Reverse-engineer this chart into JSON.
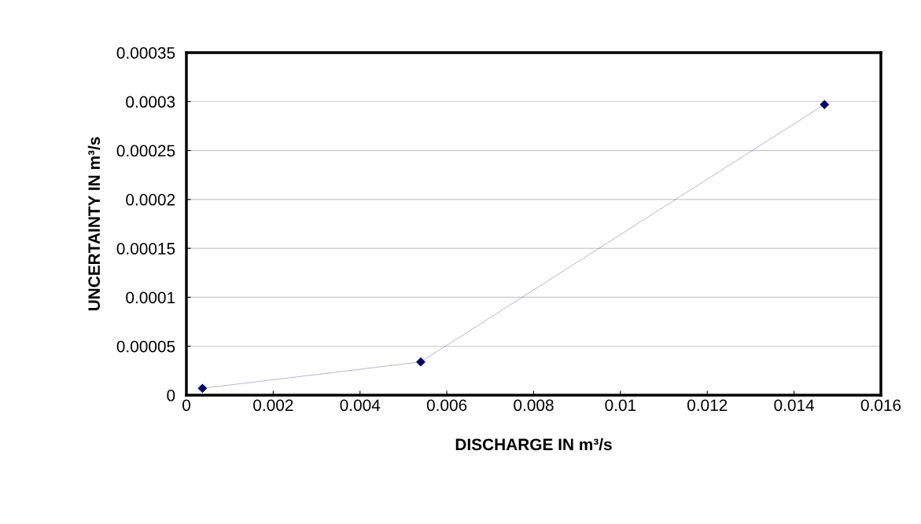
{
  "chart_data": {
    "type": "line",
    "xlabel": "DISCHARGE IN m³/s",
    "ylabel": "UNCERTAINTY IN m³/s",
    "x": [
      0.00037,
      0.0054,
      0.0147
    ],
    "series": [
      {
        "color": "#000066",
        "values": [
          7e-06,
          3.4e-05,
          0.000297
        ]
      }
    ],
    "xlim": [
      0,
      0.016
    ],
    "xticks": [
      0,
      0.002,
      0.004,
      0.006,
      0.008,
      0.01,
      0.012,
      0.014,
      0.016
    ],
    "ylim": [
      0,
      0.00035
    ],
    "yticks": [
      0,
      {
        "value": 5e-05,
        "label": "0.00005"
      },
      {
        "value": 0.0001,
        "label": "0.0001"
      },
      {
        "value": 0.00015,
        "label": "0.00015"
      },
      {
        "value": 0.0002,
        "label": "0.0002"
      },
      {
        "value": 0.00025,
        "label": "0.00025"
      },
      {
        "value": 0.0003,
        "label": "0.0003"
      },
      {
        "value": 0.00035,
        "label": "0.00035"
      }
    ],
    "grid": "y",
    "marker": "diamond",
    "line_style": "solid",
    "legend": false
  }
}
